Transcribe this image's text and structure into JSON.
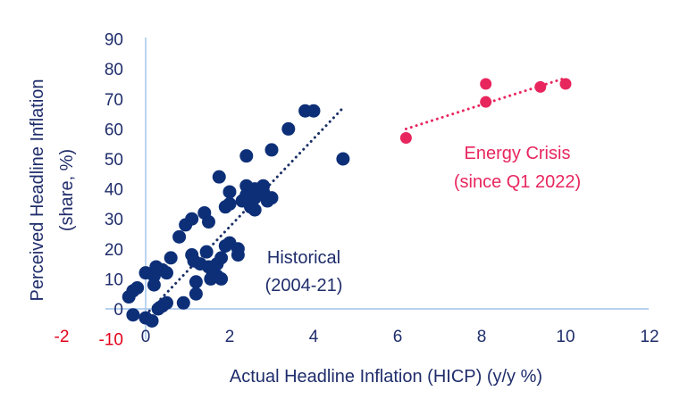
{
  "colors": {
    "historical": "#0d2f78",
    "energy": "#e8265e",
    "axis_line": "#9fc3ea",
    "text": "#1f2d6b",
    "highlight_tick": "#e3001b"
  },
  "chart_data": {
    "type": "scatter",
    "xlabel": "Actual Headline Inflation (HICP) (y/y %)",
    "ylabel": "Perceived Headline Inflation (share, %)",
    "xlim": [
      -2,
      12
    ],
    "ylim": [
      -10,
      90
    ],
    "x_ticks": [
      "-2",
      "0",
      "2",
      "4",
      "6",
      "8",
      "10",
      "12"
    ],
    "y_ticks": [
      "-10",
      "0",
      "10",
      "20",
      "30",
      "40",
      "50",
      "60",
      "70",
      "80",
      "90"
    ],
    "highlight_ticks": [
      "-2",
      "-10"
    ],
    "grid": false,
    "series": [
      {
        "key": "historical",
        "annotation": [
          "Historical",
          "(2004-21)"
        ],
        "points": [
          [
            -0.4,
            4
          ],
          [
            -0.3,
            6
          ],
          [
            -0.2,
            7
          ],
          [
            -0.3,
            -2
          ],
          [
            0.0,
            -3
          ],
          [
            0.15,
            -4
          ],
          [
            0.0,
            12
          ],
          [
            0.2,
            11
          ],
          [
            0.25,
            14
          ],
          [
            0.4,
            13
          ],
          [
            0.5,
            12
          ],
          [
            0.2,
            8
          ],
          [
            0.4,
            1
          ],
          [
            0.5,
            2
          ],
          [
            0.3,
            0
          ],
          [
            0.6,
            17
          ],
          [
            0.8,
            24
          ],
          [
            0.9,
            2
          ],
          [
            0.95,
            28
          ],
          [
            1.1,
            30
          ],
          [
            1.1,
            18
          ],
          [
            1.15,
            16
          ],
          [
            1.2,
            9
          ],
          [
            1.2,
            5
          ],
          [
            1.3,
            15
          ],
          [
            1.4,
            32
          ],
          [
            1.5,
            29
          ],
          [
            1.45,
            19
          ],
          [
            1.5,
            14
          ],
          [
            1.55,
            10
          ],
          [
            1.6,
            12
          ],
          [
            1.7,
            11
          ],
          [
            1.7,
            15
          ],
          [
            1.8,
            17
          ],
          [
            1.8,
            10
          ],
          [
            1.75,
            44
          ],
          [
            1.9,
            34
          ],
          [
            2.0,
            39
          ],
          [
            1.9,
            21
          ],
          [
            2.0,
            22
          ],
          [
            2.0,
            35
          ],
          [
            2.2,
            18
          ],
          [
            2.2,
            20
          ],
          [
            2.3,
            36
          ],
          [
            2.4,
            38
          ],
          [
            2.4,
            51
          ],
          [
            2.4,
            41
          ],
          [
            2.5,
            34
          ],
          [
            2.6,
            37
          ],
          [
            2.6,
            40
          ],
          [
            2.6,
            33
          ],
          [
            2.8,
            39
          ],
          [
            2.8,
            41
          ],
          [
            2.9,
            36
          ],
          [
            3.0,
            53
          ],
          [
            3.0,
            37
          ],
          [
            3.4,
            60
          ],
          [
            3.8,
            66
          ],
          [
            4.0,
            66
          ],
          [
            4.7,
            50
          ]
        ],
        "trend": [
          [
            0.0,
            -2
          ],
          [
            4.7,
            67
          ]
        ]
      },
      {
        "key": "energy",
        "annotation": [
          "Energy Crisis",
          "(since Q1 2022)"
        ],
        "points": [
          [
            6.2,
            57
          ],
          [
            8.1,
            75
          ],
          [
            8.1,
            69
          ],
          [
            9.4,
            74
          ],
          [
            10.0,
            75
          ]
        ],
        "trend": [
          [
            6.2,
            60
          ],
          [
            10.0,
            77
          ]
        ]
      }
    ]
  }
}
